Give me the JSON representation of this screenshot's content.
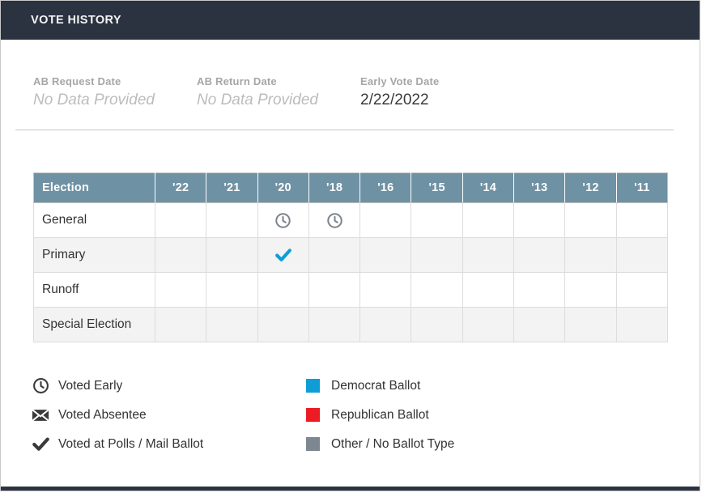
{
  "panel": {
    "title": "VOTE HISTORY"
  },
  "summary_fields": [
    {
      "label": "AB Request Date",
      "value": "No Data Provided",
      "is_empty": true
    },
    {
      "label": "AB Return Date",
      "value": "No Data Provided",
      "is_empty": true
    },
    {
      "label": "Early Vote Date",
      "value": "2/22/2022",
      "is_empty": false
    }
  ],
  "vote_table": {
    "corner_header": "Election",
    "year_headers": [
      "'22",
      "'21",
      "'20",
      "'18",
      "'16",
      "'15",
      "'14",
      "'13",
      "'12",
      "'11"
    ],
    "rows": [
      {
        "label": "General",
        "marks": [
          {
            "year": "'20",
            "type": "voted-early"
          },
          {
            "year": "'18",
            "type": "voted-early"
          }
        ]
      },
      {
        "label": "Primary",
        "marks": [
          {
            "year": "'20",
            "type": "voted-polls",
            "ballot": "democrat"
          }
        ]
      },
      {
        "label": "Runoff",
        "marks": []
      },
      {
        "label": "Special Election",
        "marks": []
      }
    ]
  },
  "legend": {
    "symbols": [
      {
        "icon": "clock-icon",
        "label": "Voted Early"
      },
      {
        "icon": "envelope-icon",
        "label": "Voted Absentee"
      },
      {
        "icon": "check-icon",
        "label": "Voted at Polls / Mail Ballot"
      }
    ],
    "ballots": [
      {
        "color": "#0f9dd8",
        "label": "Democrat Ballot"
      },
      {
        "color": "#ed1c24",
        "label": "Republican Ballot"
      },
      {
        "color": "#7d8792",
        "label": "Other / No Ballot Type"
      }
    ]
  },
  "colors": {
    "section_header_bg": "#2b3240",
    "table_header_bg": "#6e91a4",
    "democrat": "#0f9dd8",
    "republican": "#ed1c24",
    "other": "#7d8792",
    "voted_early_icon": "#7c838c",
    "legend_icon": "#3a3a3a",
    "zebra_stripe": "#f3f3f3"
  }
}
